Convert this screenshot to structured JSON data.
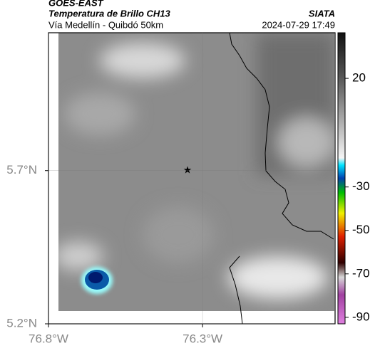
{
  "header": {
    "title": "GOES-EAST",
    "subtitle": "Temperatura de Brillo CH13",
    "source": "SIATA",
    "caption": "Vía Medellín - Quibdó 50km",
    "timestamp": "2024-07-29 17:49"
  },
  "map": {
    "xlim": [
      -76.8,
      -75.87
    ],
    "ylim": [
      5.2,
      6.15
    ],
    "xticks": [
      {
        "value": -76.8,
        "label": "76.8°W"
      },
      {
        "value": -76.3,
        "label": "76.3°W"
      }
    ],
    "yticks": [
      {
        "value": 5.7,
        "label": "5.7°N"
      },
      {
        "value": 5.2,
        "label": "5.2°N"
      }
    ],
    "grid": true
  },
  "colorbar": {
    "lim": [
      -93,
      41
    ],
    "ticks": [
      20,
      -30,
      -50,
      -70,
      -90
    ]
  }
}
